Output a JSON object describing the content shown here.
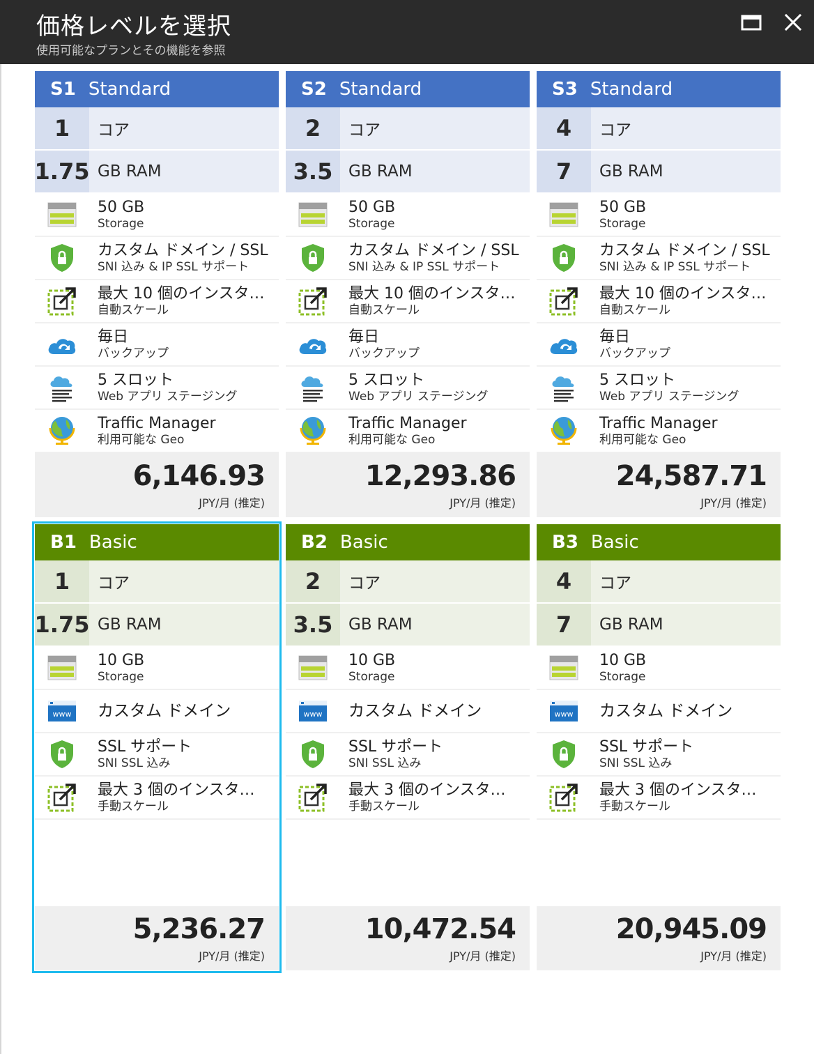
{
  "header": {
    "title": "価格レベルを選択",
    "subtitle": "使用可能なプランとその機能を参照"
  },
  "colors": {
    "standard_header": "#4472c4",
    "basic_header": "#5a8a00",
    "selected_outline": "#1ebbee",
    "header_bg": "#2b2b2b"
  },
  "standard_features": [
    {
      "icon": "storage-icon",
      "main": "50 GB",
      "sub": "Storage"
    },
    {
      "icon": "shield-lock-icon",
      "main": "カスタム ドメイン / SSL",
      "sub": "SNI 込み & IP SSL サポート"
    },
    {
      "icon": "scale-out-icon",
      "main": "最大 10 個のインスタ…",
      "sub": "自動スケール"
    },
    {
      "icon": "cloud-backup-icon",
      "main": "毎日",
      "sub": "バックアップ"
    },
    {
      "icon": "cloud-slots-icon",
      "main": "5 スロット",
      "sub": "Web アプリ ステージング"
    },
    {
      "icon": "globe-icon",
      "main": "Traffic Manager",
      "sub": "利用可能な Geo"
    }
  ],
  "basic_features": [
    {
      "icon": "storage-icon",
      "main": "10 GB",
      "sub": "Storage"
    },
    {
      "icon": "www-domain-icon",
      "main": "カスタム ドメイン",
      "sub": ""
    },
    {
      "icon": "shield-lock-icon",
      "main": "SSL サポート",
      "sub": "SNI SSL 込み"
    },
    {
      "icon": "scale-out-icon",
      "main": "最大 3 個のインスタ…",
      "sub": "手動スケール"
    }
  ],
  "plans": [
    {
      "code": "S1",
      "tier": "Standard",
      "cores": "1",
      "cores_label": "コア",
      "ram": "1.75",
      "ram_label": "GB RAM",
      "price": "6,146.93",
      "unit": "JPY/月 (推定)"
    },
    {
      "code": "S2",
      "tier": "Standard",
      "cores": "2",
      "cores_label": "コア",
      "ram": "3.5",
      "ram_label": "GB RAM",
      "price": "12,293.86",
      "unit": "JPY/月 (推定)"
    },
    {
      "code": "S3",
      "tier": "Standard",
      "cores": "4",
      "cores_label": "コア",
      "ram": "7",
      "ram_label": "GB RAM",
      "price": "24,587.71",
      "unit": "JPY/月 (推定)"
    },
    {
      "code": "B1",
      "tier": "Basic",
      "cores": "1",
      "cores_label": "コア",
      "ram": "1.75",
      "ram_label": "GB RAM",
      "price": "5,236.27",
      "unit": "JPY/月 (推定)",
      "selected": true
    },
    {
      "code": "B2",
      "tier": "Basic",
      "cores": "2",
      "cores_label": "コア",
      "ram": "3.5",
      "ram_label": "GB RAM",
      "price": "10,472.54",
      "unit": "JPY/月 (推定)"
    },
    {
      "code": "B3",
      "tier": "Basic",
      "cores": "4",
      "cores_label": "コア",
      "ram": "7",
      "ram_label": "GB RAM",
      "price": "20,945.09",
      "unit": "JPY/月 (推定)"
    }
  ]
}
